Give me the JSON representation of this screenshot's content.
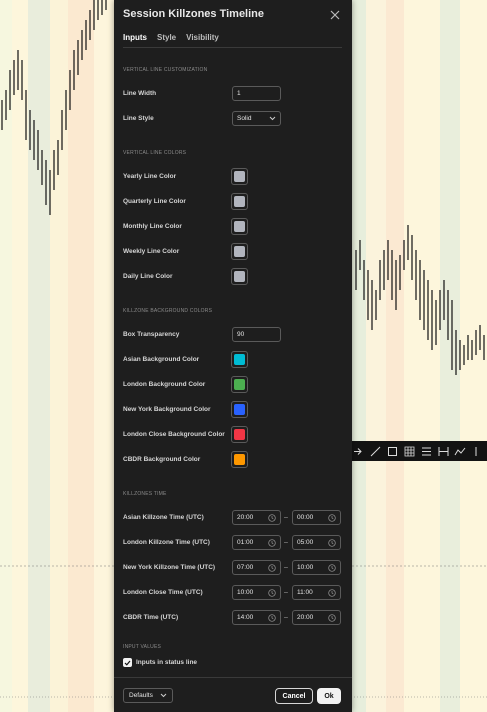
{
  "dialog": {
    "title": "Session Killzones Timeline",
    "tabs": [
      {
        "label": "Inputs",
        "active": true
      },
      {
        "label": "Style",
        "active": false
      },
      {
        "label": "Visibility",
        "active": false
      }
    ]
  },
  "sections": {
    "line_customization": {
      "heading": "VERTICAL LINE CUSTOMIZATION",
      "line_width_label": "Line Width",
      "line_width_value": "1",
      "line_style_label": "Line Style",
      "line_style_value": "Solid"
    },
    "line_colors": {
      "heading": "VERTICAL LINE COLORS",
      "items": [
        {
          "label": "Yearly Line Color",
          "color": "#b2b5be"
        },
        {
          "label": "Quarterly Line Color",
          "color": "#b2b5be"
        },
        {
          "label": "Monthly Line Color",
          "color": "#b2b5be"
        },
        {
          "label": "Weekly Line Color",
          "color": "#b2b5be"
        },
        {
          "label": "Daily Line Color",
          "color": "#b2b5be"
        }
      ]
    },
    "background_colors": {
      "heading": "KILLZONE BACKGROUND COLORS",
      "transparency_label": "Box Transparency",
      "transparency_value": "90",
      "items": [
        {
          "label": "Asian Background Color",
          "color": "#00bcd4"
        },
        {
          "label": "London Background Color",
          "color": "#4caf50"
        },
        {
          "label": "New York Background Color",
          "color": "#2962ff"
        },
        {
          "label": "London Close Background Color",
          "color": "#f23645"
        },
        {
          "label": "CBDR Background Color",
          "color": "#ff9800"
        }
      ]
    },
    "killzones_time": {
      "heading": "KILLZONES TIME",
      "items": [
        {
          "label": "Asian Killzone Time (UTC)",
          "start": "20:00",
          "end": "00:00"
        },
        {
          "label": "London Killzone Time (UTC)",
          "start": "01:00",
          "end": "05:00"
        },
        {
          "label": "New York Killzone Time (UTC)",
          "start": "07:00",
          "end": "10:00"
        },
        {
          "label": "London Close Time (UTC)",
          "start": "10:00",
          "end": "11:00"
        },
        {
          "label": "CBDR Time (UTC)",
          "start": "14:00",
          "end": "20:00"
        }
      ]
    },
    "input_values": {
      "heading": "INPUT VALUES",
      "checkbox_label": "Inputs in status line",
      "checked": true
    }
  },
  "footer": {
    "defaults_label": "Defaults",
    "cancel_label": "Cancel",
    "ok_label": "Ok"
  },
  "chart_background": {
    "band_colors": [
      "#f5f8e0",
      "#e9efdc",
      "#fbecd4",
      "#fdf6dc",
      "#e4ecdc"
    ]
  },
  "icons": [
    "close-icon",
    "chevron-down-icon",
    "clock-icon",
    "checkmark-icon",
    "trend-line-icon",
    "rectangle-icon",
    "grid-icon",
    "lines-icon",
    "fib-icon",
    "path-icon"
  ]
}
